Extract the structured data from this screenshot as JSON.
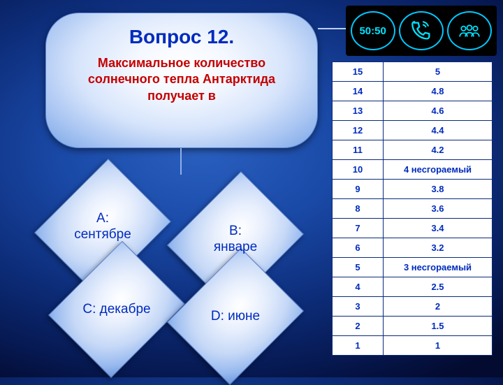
{
  "question": {
    "title": "Вопрос 12.",
    "text": "Максимальное количество солнечного тепла Антарктида получает в"
  },
  "answers": {
    "A": {
      "key": "А:",
      "text": "сентябре"
    },
    "B": {
      "key": "В:",
      "text": "январе"
    },
    "C": {
      "key": "С:",
      "text": "декабре"
    },
    "D": {
      "key": "D:",
      "text": "июне"
    }
  },
  "lifelines": {
    "fifty": "50:50",
    "phone": "phone-icon",
    "audience": "audience-icon"
  },
  "score_rows": [
    {
      "n": "15",
      "v": "5"
    },
    {
      "n": "14",
      "v": "4.8"
    },
    {
      "n": "13",
      "v": "4.6"
    },
    {
      "n": "12",
      "v": "4.4"
    },
    {
      "n": "11",
      "v": "4.2"
    },
    {
      "n": "10",
      "v": "4 несгораемый"
    },
    {
      "n": "9",
      "v": "3.8"
    },
    {
      "n": "8",
      "v": "3.6"
    },
    {
      "n": "7",
      "v": "3.4"
    },
    {
      "n": "6",
      "v": "3.2"
    },
    {
      "n": "5",
      "v": "3 несгораемый"
    },
    {
      "n": "4",
      "v": "2.5"
    },
    {
      "n": "3",
      "v": "2"
    },
    {
      "n": "2",
      "v": "1.5"
    },
    {
      "n": "1",
      "v": "1"
    }
  ],
  "colors": {
    "accent": "#002bbd",
    "danger": "#c40000",
    "neon": "#00e4ff"
  }
}
